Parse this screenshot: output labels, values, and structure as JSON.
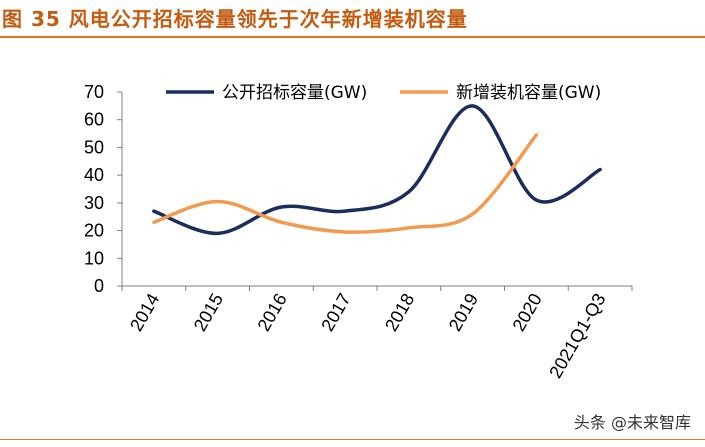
{
  "figure": {
    "title": "图 35 风电公开招标容量领先于次年新增装机容量",
    "watermark": "头条 @未来智库"
  },
  "colors": {
    "title": "#c55a11",
    "rule": "#e87722",
    "series_bidding": "#1a2d5c",
    "series_installed": "#f29a4f"
  },
  "chart_data": {
    "type": "line",
    "title": "",
    "xlabel": "",
    "ylabel": "",
    "ylim": [
      0,
      70
    ],
    "yticks": [
      "0",
      "10",
      "20",
      "30",
      "40",
      "50",
      "60",
      "70"
    ],
    "categories": [
      "2014",
      "2015",
      "2016",
      "2017",
      "2018",
      "2019",
      "2020",
      "2021Q1-Q3"
    ],
    "grid": false,
    "legend_position": "top",
    "smooth": true,
    "series": [
      {
        "name": "公开招标容量(GW)",
        "color": "#1a2d5c",
        "values": [
          27,
          19,
          28.5,
          27,
          34,
          65,
          31,
          42
        ]
      },
      {
        "name": "新增装机容量(GW)",
        "color": "#f29a4f",
        "values": [
          23,
          30.5,
          23,
          19.5,
          21,
          26,
          54.5,
          null
        ]
      }
    ]
  }
}
